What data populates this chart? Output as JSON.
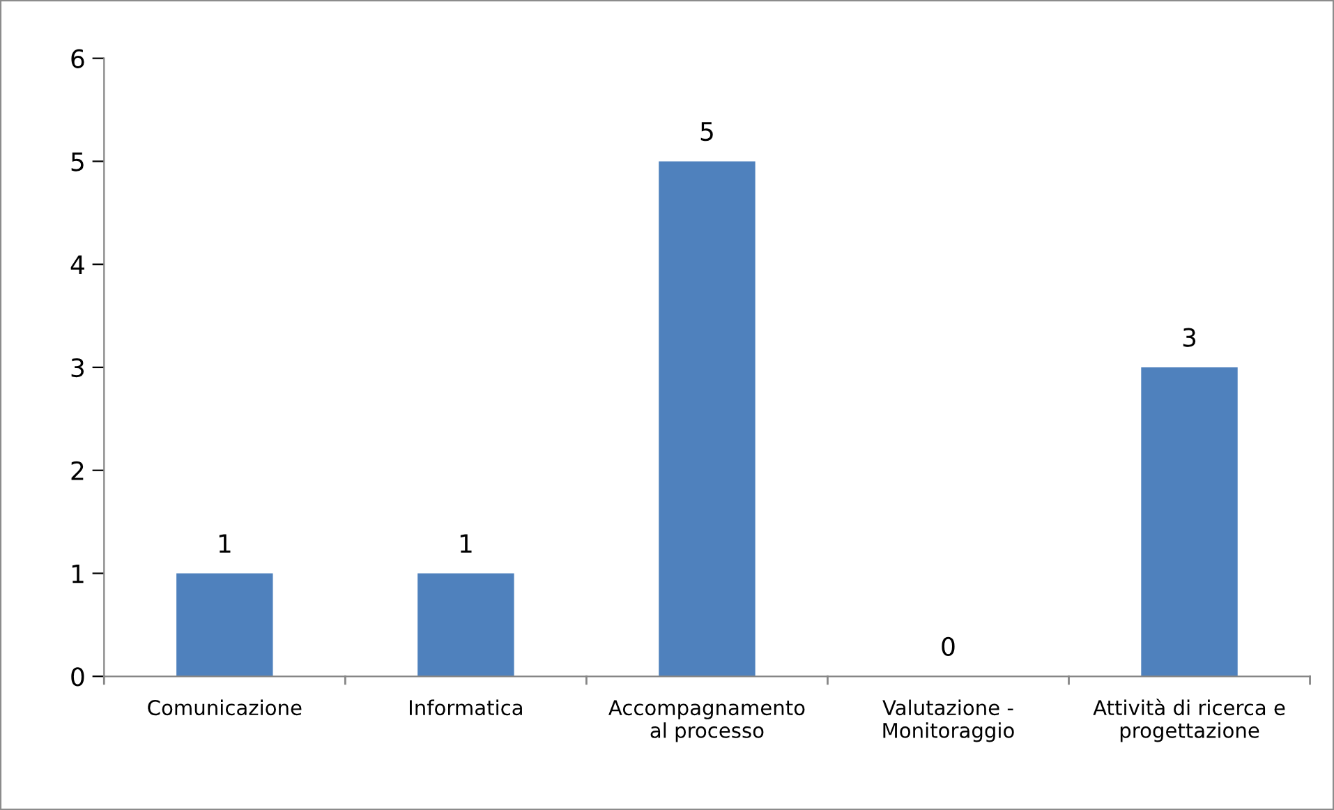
{
  "chart_data": {
    "type": "bar",
    "categories": [
      "Comunicazione",
      "Informatica",
      "Accompagnamento\nal processo",
      "Valutazione -\nMonitoraggio",
      "Attività di ricerca e\nprogettazione"
    ],
    "values": [
      1,
      1,
      5,
      0,
      3
    ],
    "color": "#4f81bd",
    "ylim": [
      0,
      6
    ],
    "yticks": [
      0,
      1,
      2,
      3,
      4,
      5,
      6
    ],
    "data_labels": true,
    "grid": false
  }
}
